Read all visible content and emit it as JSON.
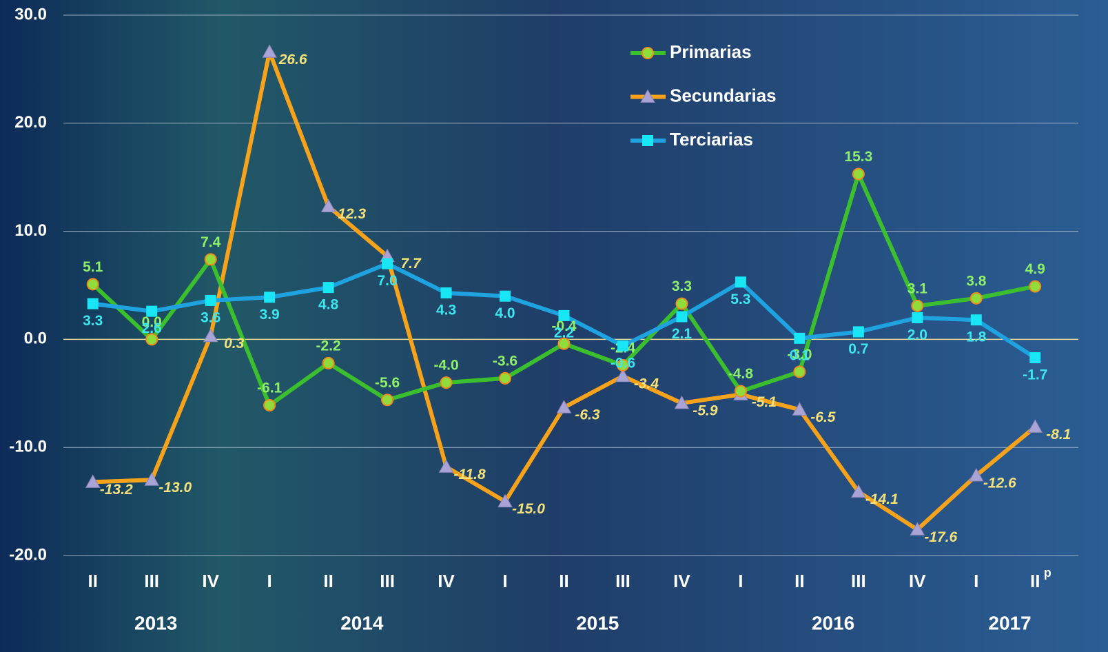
{
  "chart_data": {
    "type": "line",
    "categories": [
      "II",
      "III",
      "IV",
      "I",
      "II",
      "III",
      "IV",
      "I",
      "II",
      "III",
      "IV",
      "I",
      "II",
      "III",
      "IV",
      "I",
      "II"
    ],
    "category_note": "p",
    "years": [
      "2013",
      "2014",
      "2015",
      "2016",
      "2017"
    ],
    "series": [
      {
        "name": "Primarias",
        "color": "#3cbf2e",
        "marker": "circle",
        "marker_color": "#8fdc3a",
        "label_color": "#8ff06a",
        "values": [
          5.1,
          0.0,
          7.4,
          -6.1,
          -2.2,
          -5.6,
          -4.0,
          -3.6,
          -0.4,
          -2.4,
          3.3,
          -4.8,
          -3.0,
          15.3,
          3.1,
          3.8,
          4.9
        ],
        "value_labels": [
          "5.1",
          "0.0",
          "7.4",
          "-6.1",
          "-2.2",
          "-5.6",
          "-4.0",
          "-3.6",
          "-0.4",
          "-2.4",
          "3.3",
          "-4.8",
          "-3.0",
          "15.3",
          "3.1",
          "3.8",
          "4.9"
        ]
      },
      {
        "name": "Secundarias",
        "color": "#f7a21b",
        "marker": "triangle",
        "marker_color": "#aaa4d6",
        "label_color": "#f5e17a",
        "values": [
          -13.2,
          -13.0,
          0.3,
          26.6,
          12.3,
          7.7,
          -11.8,
          -15.0,
          -6.3,
          -3.4,
          -5.9,
          -5.1,
          -6.5,
          -14.1,
          -17.6,
          -12.6,
          -8.1
        ],
        "value_labels": [
          "-13.2",
          "-13.0",
          "0.3",
          "26.6",
          "12.3",
          "7.7",
          "-11.8",
          "-15.0",
          "-6.3",
          "-3.4",
          "-5.9",
          "-5.1",
          "-6.5",
          "-14.1",
          "-17.6",
          "-12.6",
          "-8.1"
        ]
      },
      {
        "name": "Terciarias",
        "color": "#1fa3e0",
        "marker": "square",
        "marker_color": "#18e6f5",
        "label_color": "#3ee6f0",
        "values": [
          3.3,
          2.6,
          3.6,
          3.9,
          4.8,
          7.0,
          4.3,
          4.0,
          2.2,
          -0.6,
          2.1,
          5.3,
          0.1,
          0.7,
          2.0,
          1.8,
          -1.7
        ],
        "value_labels": [
          "3.3",
          "2.6",
          "3.6",
          "3.9",
          "4.8",
          "7.0",
          "4.3",
          "4.0",
          "2.2",
          "-0.6",
          "2.1",
          "5.3",
          "0.1",
          "0.7",
          "2.0",
          "1.8",
          "-1.7"
        ]
      }
    ],
    "ylim": [
      -20,
      30
    ],
    "yticks": [
      {
        "value": -20,
        "label": "-20.0"
      },
      {
        "value": -10,
        "label": "-10.0"
      },
      {
        "value": 0,
        "label": "0.0"
      },
      {
        "value": 10,
        "label": "10.0"
      },
      {
        "value": 20,
        "label": "20.0"
      },
      {
        "value": 30,
        "label": "30.0"
      }
    ],
    "grid": true,
    "legend": "top"
  }
}
